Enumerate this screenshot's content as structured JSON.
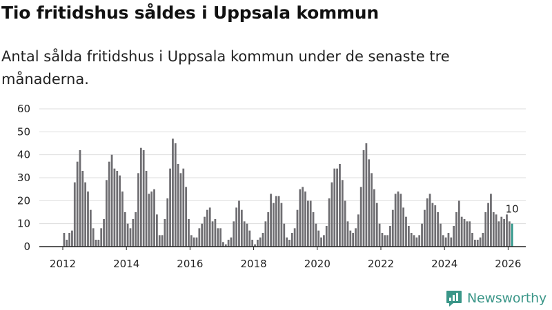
{
  "header": {
    "title": "Tio fritidshus såldes i Uppsala kommun",
    "subtitle": "Antal sålda fritidshus i Uppsala kommun under de senaste tre månaderna."
  },
  "branding": {
    "name": "Newsworthy",
    "logo_icon": "chart-logo-icon"
  },
  "colors": {
    "bar": "#6f6e72",
    "highlight": "#2f9689",
    "grid": "#dddddd",
    "axis": "#222222"
  },
  "chart_data": {
    "type": "bar",
    "title": "Tio fritidshus såldes i Uppsala kommun",
    "xlabel": "",
    "ylabel": "",
    "ylim": [
      0,
      60
    ],
    "y_ticks": [
      "0",
      "10",
      "20",
      "30",
      "40",
      "50",
      "60"
    ],
    "x_ticks": [
      {
        "year": 2012,
        "label": "2012"
      },
      {
        "year": 2014,
        "label": "2014"
      },
      {
        "year": 2016,
        "label": "2016"
      },
      {
        "year": 2018,
        "label": "2018"
      },
      {
        "year": 2020,
        "label": "2020"
      },
      {
        "year": 2022,
        "label": "2022"
      },
      {
        "year": 2024,
        "label": "2024"
      },
      {
        "year": 2026,
        "label": "2026"
      }
    ],
    "start": "2012-01",
    "period": "monthly, rolling 3-month total",
    "highlight_label": "10",
    "values": [
      6,
      3,
      6,
      7,
      28,
      37,
      42,
      33,
      28,
      24,
      16,
      8,
      3,
      3,
      8,
      12,
      29,
      37,
      40,
      34,
      33,
      31,
      24,
      15,
      10,
      8,
      12,
      15,
      32,
      43,
      42,
      33,
      23,
      24,
      25,
      14,
      5,
      5,
      12,
      21,
      34,
      47,
      45,
      36,
      32,
      34,
      26,
      12,
      5,
      4,
      4,
      8,
      10,
      13,
      16,
      17,
      11,
      12,
      8,
      8,
      2,
      1,
      3,
      4,
      11,
      17,
      20,
      16,
      11,
      10,
      7,
      3,
      1,
      3,
      4,
      6,
      11,
      15,
      23,
      19,
      22,
      22,
      19,
      10,
      4,
      3,
      6,
      8,
      16,
      25,
      26,
      24,
      20,
      20,
      15,
      10,
      7,
      4,
      5,
      9,
      21,
      28,
      34,
      34,
      36,
      29,
      20,
      11,
      7,
      6,
      8,
      14,
      26,
      42,
      45,
      38,
      32,
      25,
      19,
      10,
      6,
      5,
      5,
      9,
      16,
      23,
      24,
      23,
      17,
      13,
      9,
      6,
      5,
      4,
      5,
      10,
      16,
      21,
      23,
      19,
      18,
      15,
      10,
      5,
      4,
      6,
      4,
      9,
      15,
      20,
      13,
      12,
      11,
      11,
      6,
      3,
      3,
      4,
      6,
      15,
      19,
      23,
      15,
      14,
      11,
      13,
      12,
      14,
      11,
      10
    ]
  }
}
